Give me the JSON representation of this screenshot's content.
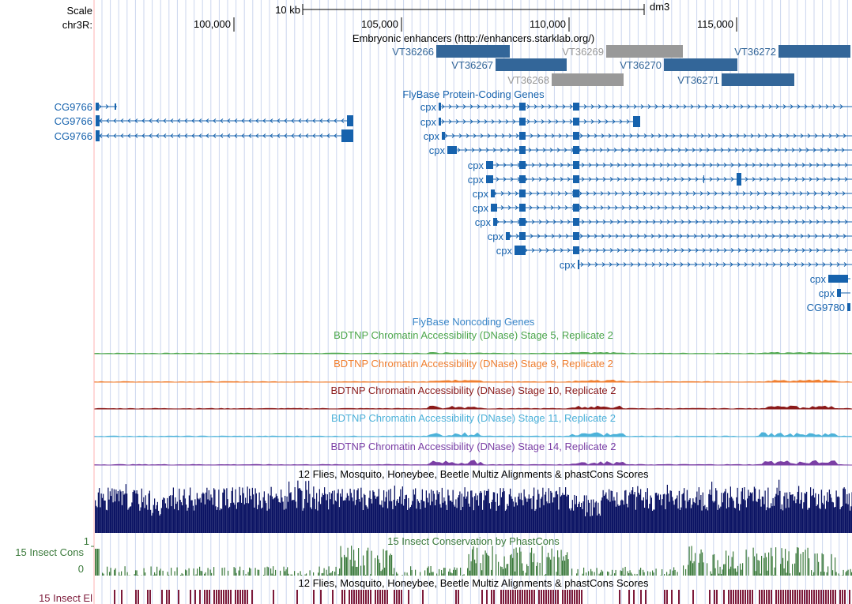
{
  "ruler": {
    "scale_label": "Scale",
    "chrom_label": "chr3R:",
    "scale_bar_text": "10 kb",
    "assembly": "dm3",
    "positions": [
      {
        "label": "100,000",
        "bp": 100000
      },
      {
        "label": "105,000",
        "bp": 105000
      },
      {
        "label": "110,000",
        "bp": 110000
      },
      {
        "label": "115,000",
        "bp": 115000
      }
    ]
  },
  "colors": {
    "gene_blue": "#1662ad",
    "enhancer_blue": "#336699",
    "enhancer_grey": "#999999",
    "grid_line": "#cbd6ee",
    "stage5": "#4ca64c",
    "stage9": "#f07f30",
    "stage10": "#8b1a1a",
    "stage11": "#4db2d9",
    "stage14": "#7b3fa5",
    "multiz": "#0c1464",
    "phastcons": "#3b7a3b",
    "elements": "#7d1a3a",
    "left_margin_line": "#ffb0b0"
  },
  "tracks": {
    "enhancers": {
      "title": "Embryonic enhancers (http://enhancers.starklab.org/)",
      "items": [
        {
          "label": "VT36266",
          "active": true
        },
        {
          "label": "VT36267",
          "active": true
        },
        {
          "label": "VT36268",
          "active": false
        },
        {
          "label": "VT36269",
          "active": false
        },
        {
          "label": "VT36270",
          "active": true
        },
        {
          "label": "VT36271",
          "active": true
        },
        {
          "label": "VT36272",
          "active": true
        }
      ]
    },
    "protein_coding": {
      "title": "FlyBase Protein-Coding Genes",
      "genes": [
        {
          "label": "CG9766",
          "strand": "+"
        },
        {
          "label": "CG9766",
          "strand": "-"
        },
        {
          "label": "CG9766",
          "strand": "-"
        },
        {
          "label": "cpx",
          "strand": "+"
        },
        {
          "label": "cpx",
          "strand": "+"
        },
        {
          "label": "cpx",
          "strand": "+"
        },
        {
          "label": "cpx",
          "strand": "+"
        },
        {
          "label": "cpx",
          "strand": "+"
        },
        {
          "label": "cpx",
          "strand": "+"
        },
        {
          "label": "cpx",
          "strand": "+"
        },
        {
          "label": "cpx",
          "strand": "+"
        },
        {
          "label": "cpx",
          "strand": "+"
        },
        {
          "label": "cpx",
          "strand": "+"
        },
        {
          "label": "cpx",
          "strand": "+"
        },
        {
          "label": "cpx",
          "strand": "+"
        },
        {
          "label": "cpx",
          "strand": "+"
        },
        {
          "label": "cpx",
          "strand": "+"
        },
        {
          "label": "CG9780",
          "strand": "+"
        }
      ]
    },
    "noncoding": {
      "title": "FlyBase Noncoding Genes"
    },
    "dnase": [
      {
        "title": "BDTNP Chromatin Accessibility (DNase) Stage 5, Replicate 2",
        "color_key": "stage5"
      },
      {
        "title": "BDTNP Chromatin Accessibility (DNase) Stage 9, Replicate 2",
        "color_key": "stage9"
      },
      {
        "title": "BDTNP Chromatin Accessibility (DNase) Stage 10, Replicate 2",
        "color_key": "stage10"
      },
      {
        "title": "BDTNP Chromatin Accessibility (DNase) Stage 11, Replicate 2",
        "color_key": "stage11"
      },
      {
        "title": "BDTNP Chromatin Accessibility (DNase) Stage 14, Replicate 2",
        "color_key": "stage14"
      }
    ],
    "multiz": {
      "title": "12 Flies, Mosquito, Honeybee, Beetle Multiz Alignments & phastCons Scores"
    },
    "phastcons": {
      "title": "15 Insect Conservation by PhastCons",
      "side_label": "15 Insect Cons",
      "axis_max": "1",
      "axis_min": "0"
    },
    "elements": {
      "title": "12 Flies, Mosquito, Honeybee, Beetle Multiz Alignments & phastCons Scores",
      "side_label": "15 Insect El"
    }
  }
}
